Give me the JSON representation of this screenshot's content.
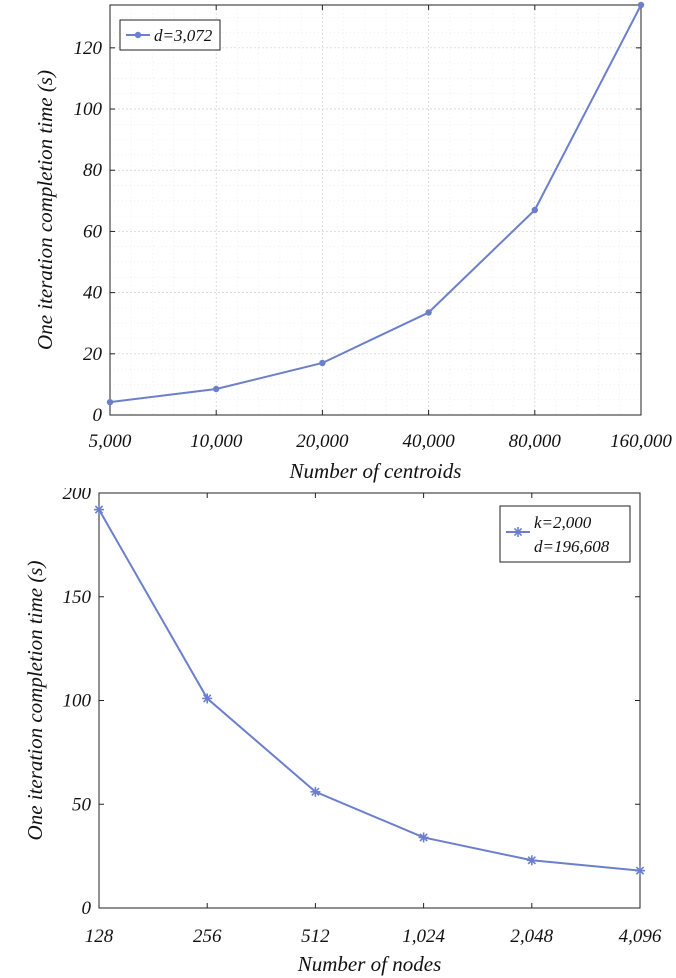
{
  "chart_data": [
    {
      "type": "line",
      "categories": [
        "5,000",
        "10,000",
        "20,000",
        "40,000",
        "80,000",
        "160,000"
      ],
      "series": [
        {
          "name": "d=3,072",
          "values": [
            4.2,
            8.5,
            17,
            33.5,
            67,
            134
          ]
        }
      ],
      "xlabel": "Number of centroids",
      "ylabel": "One iteration completion time (s)",
      "ylim": [
        0,
        134
      ],
      "yticks": [
        0,
        20,
        40,
        60,
        80,
        100,
        120
      ],
      "grid": "on (major and minor, dotted)",
      "legend": "top-left",
      "marker": "dot",
      "color": "#6b7fcc"
    },
    {
      "type": "line",
      "categories": [
        "128",
        "256",
        "512",
        "1,024",
        "2,048",
        "4,096"
      ],
      "series": [
        {
          "name": "k=2,000",
          "name2": "d=196,608",
          "values": [
            192,
            101,
            56,
            34,
            23,
            18
          ]
        }
      ],
      "xlabel": "Number of nodes",
      "ylabel": "One iteration completion time (s)",
      "ylim": [
        0,
        200
      ],
      "yticks": [
        0,
        50,
        100,
        150,
        200
      ],
      "grid": "off",
      "legend": "top-right",
      "marker": "star",
      "color": "#6b7fcc"
    }
  ]
}
